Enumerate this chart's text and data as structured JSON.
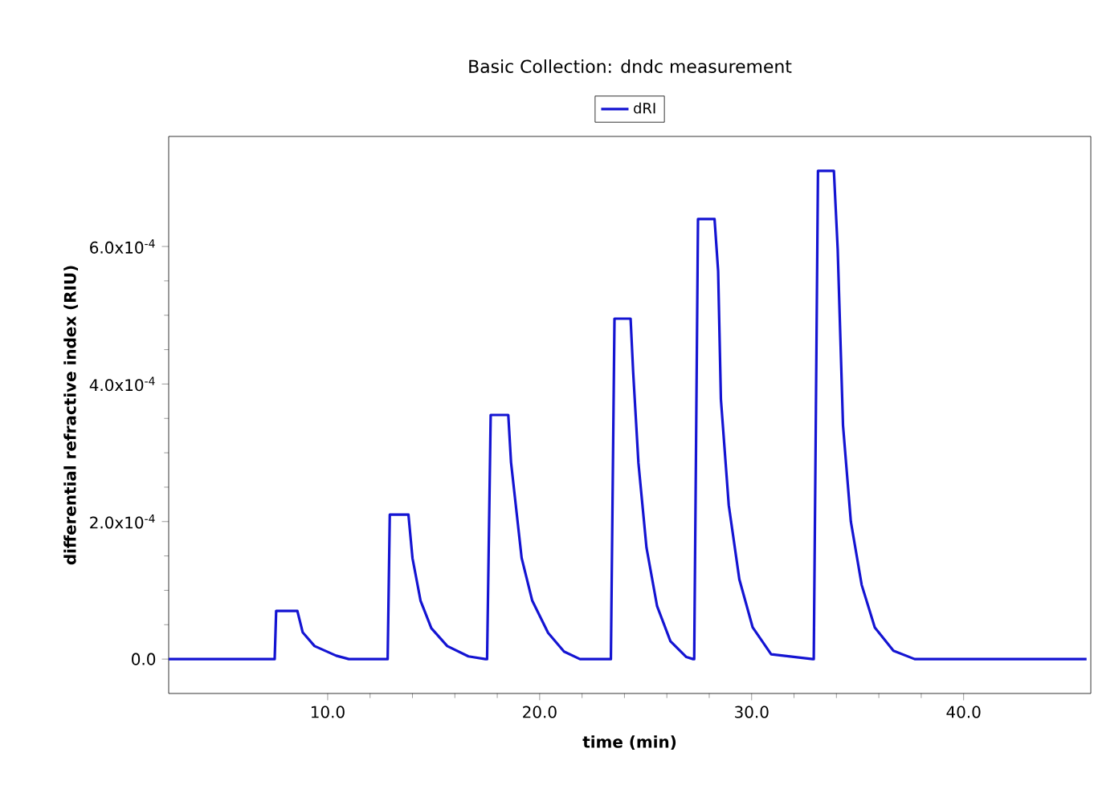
{
  "chart_data": {
    "type": "line",
    "title": "Basic Collection: dndc measurement",
    "xlabel": "time (min)",
    "ylabel": "differential refractive index (RIU)",
    "x": [
      2.5,
      7.5,
      7.57,
      8.57,
      8.82,
      9.38,
      10.4,
      11.0,
      12.83,
      12.93,
      13.06,
      13.81,
      14.0,
      14.38,
      14.89,
      15.64,
      16.64,
      17.44,
      17.52,
      17.69,
      18.52,
      18.65,
      19.15,
      19.65,
      20.4,
      21.15,
      21.9,
      23.28,
      23.36,
      23.53,
      24.29,
      24.41,
      24.66,
      25.04,
      25.54,
      26.17,
      26.92,
      27.24,
      27.29,
      27.47,
      28.25,
      28.42,
      28.55,
      28.92,
      29.42,
      30.05,
      30.92,
      32.88,
      32.93,
      33.13,
      33.88,
      34.06,
      34.31,
      34.68,
      35.19,
      35.81,
      36.69,
      37.69,
      45.8
    ],
    "series": [
      {
        "name": "dRI",
        "color": "#1414d2",
        "values": [
          0,
          0,
          7e-05,
          7e-05,
          3.9e-05,
          1.9e-05,
          5e-06,
          0,
          0,
          0.00021,
          0.00021,
          0.00021,
          0.000147,
          8.5e-05,
          4.5e-05,
          1.9e-05,
          4e-06,
          0,
          0,
          0.000355,
          0.000355,
          0.000286,
          0.000147,
          8.5e-05,
          3.8e-05,
          1.1e-05,
          0,
          0,
          0,
          0.000495,
          0.000495,
          0.000418,
          0.000285,
          0.000162,
          7.7e-05,
          2.6e-05,
          3e-06,
          0,
          0,
          0.00064,
          0.00064,
          0.000564,
          0.000378,
          0.000224,
          0.000116,
          4.6e-05,
          7e-06,
          0,
          0,
          0.00071,
          0.00071,
          0.000596,
          0.00034,
          0.0002,
          0.000108,
          4.6e-05,
          1.2e-05,
          0,
          0
        ]
      }
    ],
    "xlim": [
      2.5,
      46
    ],
    "ylim": [
      -5e-05,
      0.00076
    ],
    "xticks": [
      {
        "value": 10,
        "label": "10.0"
      },
      {
        "value": 20,
        "label": "20.0"
      },
      {
        "value": 30,
        "label": "30.0"
      },
      {
        "value": 40,
        "label": "40.0"
      }
    ],
    "yticks": [
      {
        "value": 0,
        "label": "0.0"
      },
      {
        "value": 0.0002,
        "label": "2.0x10$^{-4}$"
      },
      {
        "value": 0.0004,
        "label": "4.0x10$^{-4}$"
      },
      {
        "value": 0.0006,
        "label": "6.0x10$^{-4}$"
      }
    ],
    "legend": "top"
  }
}
